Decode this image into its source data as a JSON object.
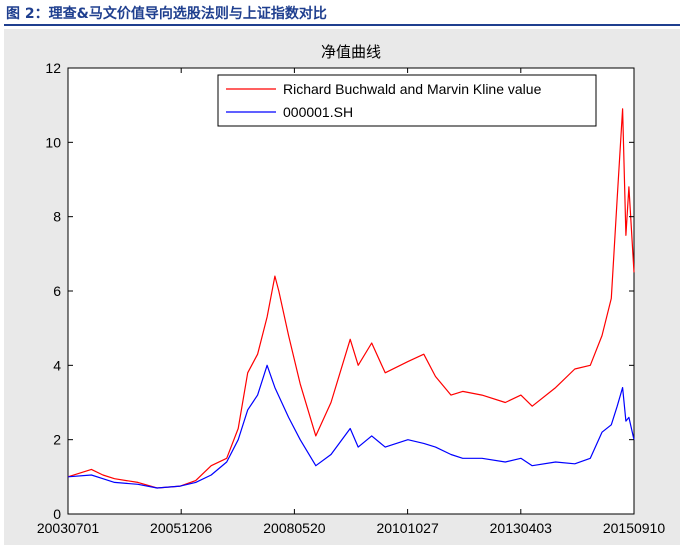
{
  "caption": "图 2：理查&马文价值导向选股法则与上证指数对比",
  "chart_data": {
    "type": "line",
    "title": "净值曲线",
    "xlabel": "",
    "ylabel": "",
    "ylim": [
      0,
      12
    ],
    "yticks": [
      0,
      2,
      4,
      6,
      8,
      10,
      12
    ],
    "xlim": [
      "2003-07-01",
      "2015-09-10"
    ],
    "xtick_labels": [
      "20030701",
      "20051206",
      "20080520",
      "20101027",
      "20130403",
      "20150910"
    ],
    "grid": false,
    "legend_position": "top-right",
    "series": [
      {
        "name": "Richard Buchwald and Marvin Kline value",
        "color": "#ff0000",
        "x": [
          "2003-07-01",
          "2004-01-01",
          "2004-04-01",
          "2004-07-01",
          "2005-01-01",
          "2005-06-01",
          "2005-12-01",
          "2006-04-01",
          "2006-08-01",
          "2006-12-01",
          "2007-03-01",
          "2007-05-15",
          "2007-08-01",
          "2007-10-15",
          "2007-12-15",
          "2008-01-15",
          "2008-04-01",
          "2008-07-01",
          "2008-11-01",
          "2009-03-01",
          "2009-07-30",
          "2009-10-01",
          "2010-01-15",
          "2010-05-01",
          "2010-10-27",
          "2011-03-01",
          "2011-06-01",
          "2011-10-01",
          "2012-01-01",
          "2012-06-01",
          "2012-12-01",
          "2013-04-03",
          "2013-07-01",
          "2014-01-01",
          "2014-06-01",
          "2014-10-01",
          "2015-01-01",
          "2015-03-15",
          "2015-05-01",
          "2015-06-12",
          "2015-07-08",
          "2015-08-01",
          "2015-09-10"
        ],
        "values": [
          1.0,
          1.2,
          1.05,
          0.95,
          0.85,
          0.7,
          0.75,
          0.9,
          1.3,
          1.5,
          2.3,
          3.8,
          4.3,
          5.3,
          6.4,
          6.0,
          4.8,
          3.5,
          2.1,
          3.0,
          4.7,
          4.0,
          4.6,
          3.8,
          4.1,
          4.3,
          3.7,
          3.2,
          3.3,
          3.2,
          3.0,
          3.2,
          2.9,
          3.4,
          3.9,
          4.0,
          4.8,
          5.8,
          8.5,
          10.9,
          7.5,
          8.8,
          6.5
        ]
      },
      {
        "name": "000001.SH",
        "color": "#0000ff",
        "x": [
          "2003-07-01",
          "2004-01-01",
          "2004-04-01",
          "2004-07-01",
          "2005-01-01",
          "2005-06-01",
          "2005-12-01",
          "2006-04-01",
          "2006-08-01",
          "2006-12-01",
          "2007-03-01",
          "2007-05-15",
          "2007-08-01",
          "2007-10-15",
          "2007-12-15",
          "2008-04-01",
          "2008-07-01",
          "2008-11-01",
          "2009-03-01",
          "2009-07-30",
          "2009-10-01",
          "2010-01-15",
          "2010-05-01",
          "2010-10-27",
          "2011-03-01",
          "2011-06-01",
          "2011-10-01",
          "2012-01-01",
          "2012-06-01",
          "2012-12-01",
          "2013-04-03",
          "2013-07-01",
          "2014-01-01",
          "2014-06-01",
          "2014-10-01",
          "2015-01-01",
          "2015-03-15",
          "2015-05-01",
          "2015-06-12",
          "2015-07-08",
          "2015-08-01",
          "2015-09-10"
        ],
        "values": [
          1.0,
          1.05,
          0.95,
          0.85,
          0.8,
          0.7,
          0.75,
          0.85,
          1.05,
          1.4,
          2.0,
          2.8,
          3.2,
          4.0,
          3.4,
          2.6,
          2.0,
          1.3,
          1.6,
          2.3,
          1.8,
          2.1,
          1.8,
          2.0,
          1.9,
          1.8,
          1.6,
          1.5,
          1.5,
          1.4,
          1.5,
          1.3,
          1.4,
          1.35,
          1.5,
          2.2,
          2.4,
          2.9,
          3.4,
          2.5,
          2.6,
          2.0
        ]
      }
    ]
  }
}
